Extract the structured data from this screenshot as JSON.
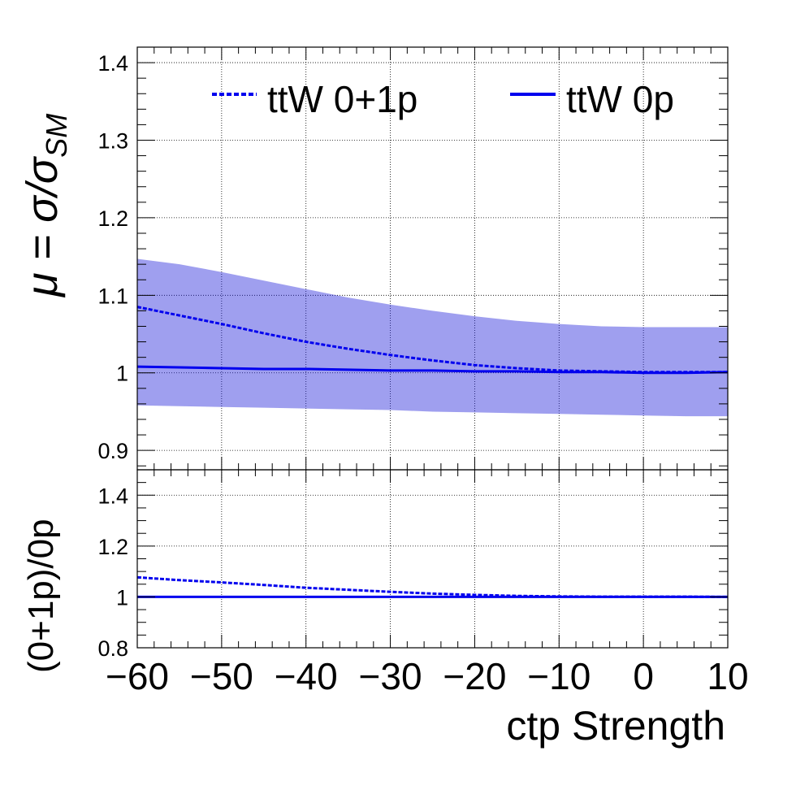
{
  "chart_data": [
    {
      "type": "line",
      "panel": "top",
      "ylabel": {
        "base": "μ = σ/σ",
        "sub": "SM"
      },
      "xlim": [
        -60,
        10
      ],
      "ylim": [
        0.875,
        1.42
      ],
      "xticks": [
        -60,
        -50,
        -40,
        -30,
        -20,
        -10,
        0,
        10
      ],
      "yticks": [
        0.9,
        1,
        1.1,
        1.2,
        1.3,
        1.4
      ],
      "ytick_labels": [
        "0.9",
        "1",
        "1.1",
        "1.2",
        "1.3",
        "1.4"
      ],
      "grid": true,
      "legend_placement": "top",
      "band": {
        "color": "#1a1ad9",
        "x": [
          -60,
          -55,
          -50,
          -45,
          -40,
          -35,
          -30,
          -25,
          -20,
          -15,
          -10,
          -5,
          0,
          5,
          10
        ],
        "upper": [
          1.147,
          1.14,
          1.13,
          1.119,
          1.108,
          1.097,
          1.088,
          1.08,
          1.073,
          1.067,
          1.063,
          1.06,
          1.059,
          1.059,
          1.059
        ],
        "lower": [
          0.958,
          0.957,
          0.956,
          0.955,
          0.954,
          0.953,
          0.952,
          0.95,
          0.949,
          0.948,
          0.947,
          0.946,
          0.945,
          0.944,
          0.944
        ]
      },
      "series": [
        {
          "name": "ttW 0+1p",
          "style": "dashed",
          "color": "#0000ee",
          "x": [
            -60,
            -55,
            -50,
            -45,
            -40,
            -35,
            -30,
            -25,
            -20,
            -15,
            -10,
            -5,
            0,
            5,
            10
          ],
          "y": [
            1.085,
            1.074,
            1.063,
            1.051,
            1.04,
            1.031,
            1.023,
            1.016,
            1.01,
            1.006,
            1.003,
            1.002,
            1.001,
            1.001,
            1.001
          ]
        },
        {
          "name": "ttW 0p",
          "style": "solid",
          "color": "#0000ee",
          "x": [
            -60,
            -55,
            -50,
            -45,
            -40,
            -35,
            -30,
            -25,
            -20,
            -15,
            -10,
            -5,
            0,
            5,
            10
          ],
          "y": [
            1.008,
            1.007,
            1.006,
            1.005,
            1.005,
            1.004,
            1.003,
            1.003,
            1.002,
            1.002,
            1.001,
            1.001,
            1.0,
            1.0,
            1.001
          ]
        }
      ]
    },
    {
      "type": "line",
      "panel": "bottom",
      "xlabel": "ctp Strength",
      "ylabel": "(0+1p)/0p",
      "xlim": [
        -60,
        10
      ],
      "ylim": [
        0.8,
        1.5
      ],
      "xticks": [
        -60,
        -50,
        -40,
        -30,
        -20,
        -10,
        0,
        10
      ],
      "xtick_labels": [
        "−60",
        "−50",
        "−40",
        "−30",
        "−20",
        "−10",
        "0",
        "10"
      ],
      "yticks": [
        0.8,
        1,
        1.2,
        1.4
      ],
      "ytick_labels": [
        "0.8",
        "1",
        "1.2",
        "1.4"
      ],
      "grid": true,
      "series": [
        {
          "style": "dashed",
          "color": "#0000ee",
          "x": [
            -60,
            -55,
            -50,
            -45,
            -40,
            -35,
            -30,
            -25,
            -20,
            -15,
            -10,
            -5,
            0,
            5,
            10
          ],
          "y": [
            1.077,
            1.066,
            1.057,
            1.047,
            1.036,
            1.028,
            1.02,
            1.013,
            1.008,
            1.004,
            1.002,
            1.001,
            1.001,
            1.001,
            1.0
          ]
        },
        {
          "style": "solid",
          "color": "#0000ee",
          "x": [
            -60,
            10
          ],
          "y": [
            1.0,
            1.0
          ]
        }
      ]
    }
  ]
}
